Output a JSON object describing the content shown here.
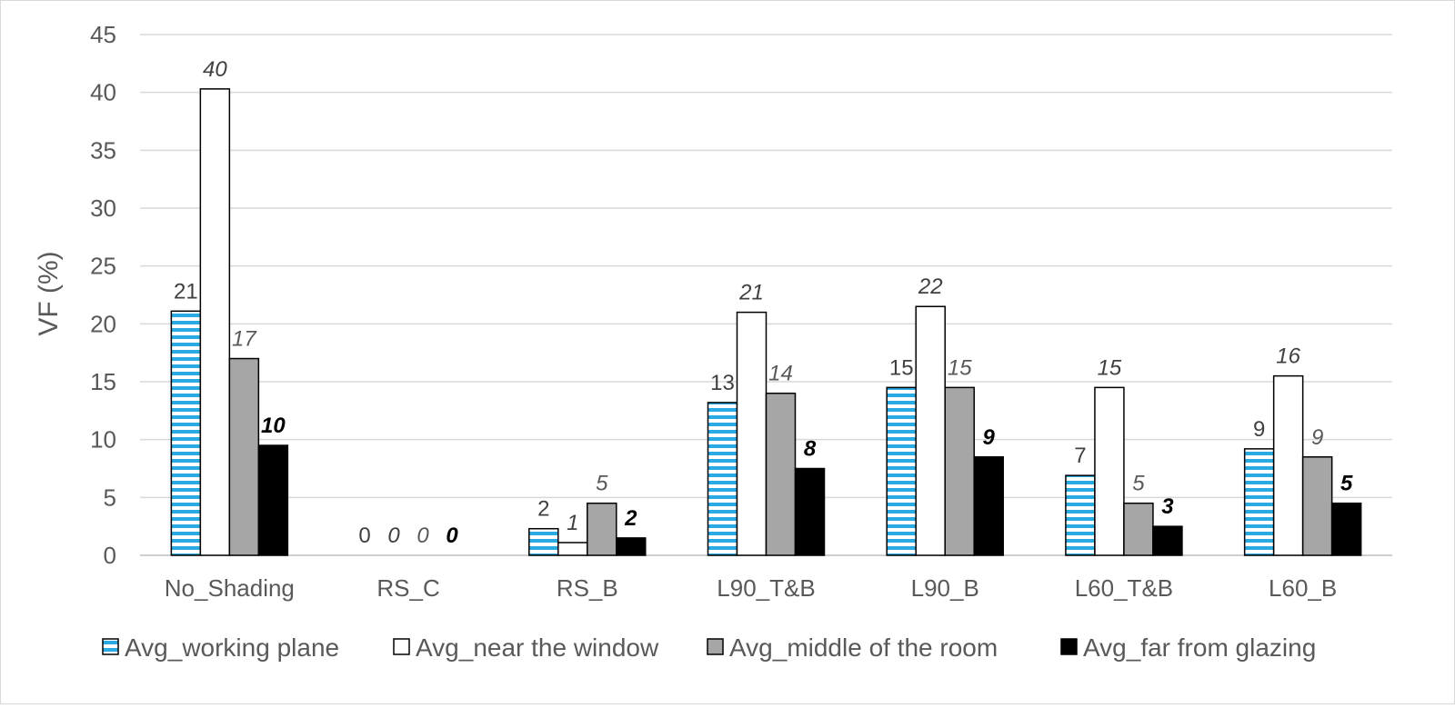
{
  "chart_data": {
    "type": "bar",
    "title": "",
    "xlabel": "",
    "ylabel": "VF (%)",
    "ylim": [
      0,
      45
    ],
    "yticks": [
      0,
      5,
      10,
      15,
      20,
      25,
      30,
      35,
      40,
      45
    ],
    "grid": true,
    "legend_position": "bottom",
    "categories": [
      "No_Shading",
      "RS_C",
      "RS_B",
      "L90_T&B",
      "L90_B",
      "L60_T&B",
      "L60_B"
    ],
    "series": [
      {
        "name": "Avg_working plane",
        "style": "blue-striped",
        "values": [
          21.1,
          0,
          2.3,
          13.2,
          14.5,
          6.9,
          9.2
        ],
        "labels": [
          "21",
          "0",
          "2",
          "13",
          "15",
          "7",
          "9"
        ]
      },
      {
        "name": "Avg_near the window",
        "style": "white",
        "values": [
          40.3,
          0,
          1.1,
          21.0,
          21.5,
          14.5,
          15.5
        ],
        "labels": [
          "40",
          "0",
          "1",
          "21",
          "22",
          "15",
          "16"
        ]
      },
      {
        "name": "Avg_middle of the room",
        "style": "gray",
        "values": [
          17.0,
          0,
          4.5,
          14.0,
          14.5,
          4.5,
          8.5
        ],
        "labels": [
          "17",
          "0",
          "5",
          "14",
          "15",
          "5",
          "9"
        ]
      },
      {
        "name": "Avg_far from glazing",
        "style": "black",
        "values": [
          9.5,
          0,
          1.5,
          7.5,
          8.5,
          2.5,
          4.5
        ],
        "labels": [
          "10",
          "0",
          "2",
          "8",
          "9",
          "3",
          "5"
        ]
      }
    ],
    "colors": {
      "working_plane_stripe": "#29abe2",
      "near_window": "#ffffff",
      "middle_room": "#a6a6a6",
      "far_glazing": "#000000",
      "grid": "#d9d9d9",
      "axis_text": "#595959"
    }
  }
}
